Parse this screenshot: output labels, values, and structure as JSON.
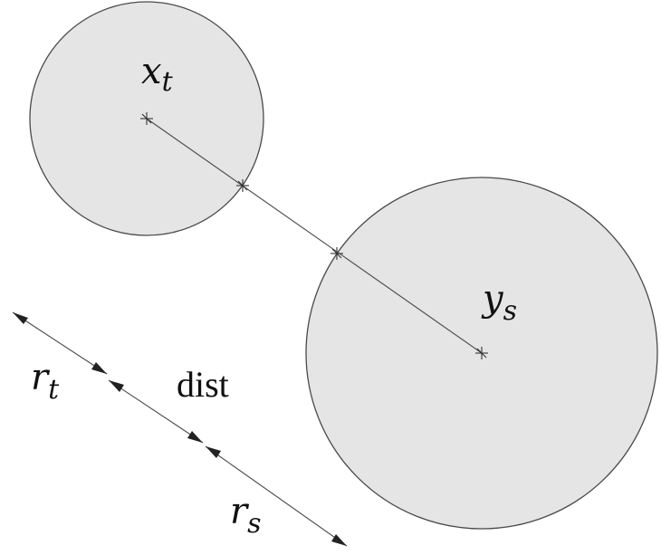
{
  "labels": {
    "x_base": "x",
    "x_sub": "t",
    "y_base": "y",
    "y_sub": "s",
    "rt_base": "r",
    "rt_sub": "t",
    "dist": "dist",
    "rs_base": "r",
    "rs_sub": "s"
  },
  "colors": {
    "disc_fill": "#e5e5e5",
    "stroke": "#4a4a4a",
    "text": "#111111"
  }
}
